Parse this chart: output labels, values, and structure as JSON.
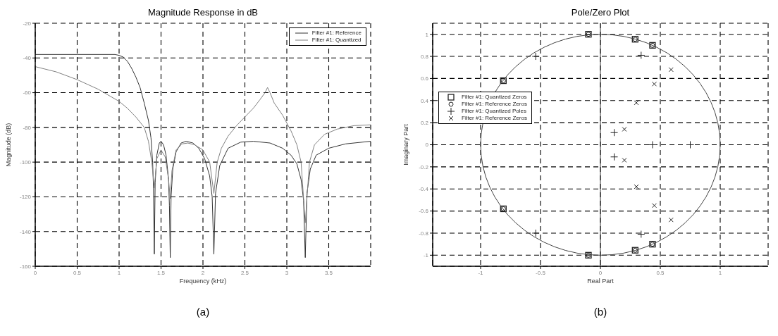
{
  "chart_data": [
    {
      "type": "line",
      "title": "Magnitude Response in dB",
      "xlabel": "Frequency (kHz)",
      "ylabel": "Magnitude (dB)",
      "xlim": [
        0,
        4
      ],
      "xticks": [
        0,
        0.5,
        1,
        1.5,
        2,
        2.5,
        3,
        3.5
      ],
      "ylim": [
        -160,
        -20
      ],
      "yticks": [
        -160,
        -140,
        -120,
        -100,
        -80,
        -60,
        -40,
        -20
      ],
      "grid": true,
      "legend": "top right",
      "line_style": "solid",
      "annotations": [
        "(a)"
      ],
      "series": [
        {
          "name": "Filter #1: Reference",
          "color": "#333333",
          "x": [
            0,
            0.5,
            0.95,
            1.0,
            1.05,
            1.1,
            1.15,
            1.2,
            1.25,
            1.3,
            1.35,
            1.38,
            1.4,
            1.41,
            1.42,
            1.43,
            1.45,
            1.48,
            1.5,
            1.53,
            1.56,
            1.59,
            1.6,
            1.61,
            1.62,
            1.64,
            1.68,
            1.74,
            1.8,
            1.88,
            1.95,
            2.02,
            2.08,
            2.11,
            2.13,
            2.15,
            2.2,
            2.3,
            2.45,
            2.6,
            2.8,
            2.95,
            3.05,
            3.12,
            3.17,
            3.2,
            3.22,
            3.24,
            3.28,
            3.35,
            3.5,
            3.7,
            4.0
          ],
          "values": [
            -38,
            -38,
            -38,
            -38.5,
            -39.5,
            -42,
            -46,
            -51,
            -57,
            -66,
            -76,
            -86,
            -100,
            -115,
            -153,
            -112,
            -96,
            -89,
            -88,
            -90,
            -96,
            -110,
            -125,
            -155,
            -120,
            -104,
            -94,
            -89,
            -88,
            -89,
            -92,
            -98,
            -108,
            -120,
            -153,
            -118,
            -102,
            -92,
            -88.5,
            -88,
            -89,
            -92,
            -96,
            -101,
            -110,
            -122,
            -155,
            -118,
            -104,
            -96,
            -92,
            -89.5,
            -88
          ]
        },
        {
          "name": "Filter #1: Quantized",
          "color": "#808080",
          "x": [
            0,
            0.25,
            0.5,
            0.75,
            1.0,
            1.1,
            1.2,
            1.3,
            1.35,
            1.39,
            1.42,
            1.45,
            1.5,
            1.55,
            1.59,
            1.61,
            1.63,
            1.68,
            1.75,
            1.82,
            1.9,
            2.0,
            2.08,
            2.13,
            2.17,
            2.22,
            2.3,
            2.4,
            2.5,
            2.6,
            2.68,
            2.74,
            2.77,
            2.8,
            2.85,
            2.95,
            3.05,
            3.12,
            3.17,
            3.22,
            3.27,
            3.33,
            3.45,
            3.6,
            3.8,
            4.0
          ],
          "values": [
            -45,
            -48,
            -52.5,
            -58,
            -65,
            -69,
            -74,
            -80,
            -88,
            -100,
            -115,
            -98,
            -93,
            -97,
            -110,
            -121,
            -105,
            -93,
            -89.5,
            -89,
            -90,
            -93,
            -100,
            -118,
            -100,
            -92,
            -85,
            -79,
            -74,
            -69,
            -64,
            -60,
            -57,
            -60,
            -66,
            -73,
            -82,
            -90,
            -100,
            -135,
            -100,
            -90,
            -84,
            -81,
            -79,
            -78.5
          ]
        }
      ]
    },
    {
      "type": "scatter",
      "title": "Pole/Zero Plot",
      "xlabel": "Real Part",
      "ylabel": "Imaginary Part",
      "xlim": [
        -1.4,
        1.4
      ],
      "xticks": [
        -1,
        -0.5,
        0,
        0.5,
        1
      ],
      "ylim": [
        -1.1,
        1.1
      ],
      "yticks": [
        -1,
        -0.8,
        -0.6,
        -0.4,
        -0.2,
        0,
        0.2,
        0.4,
        0.6,
        0.8,
        1
      ],
      "grid": true,
      "legend": "left",
      "annotations": [
        "(b)"
      ],
      "ref_lines": [
        {
          "axis": "x",
          "value": 0,
          "color": "#333333",
          "line_style": "solid"
        }
      ],
      "series": [
        {
          "name": "Filter #1: Quantized Zeros",
          "color": "#222222",
          "marker": "square",
          "x": [
            -0.1,
            0.29,
            0.435,
            -0.81,
            -0.81,
            -0.1,
            0.29,
            0.435
          ],
          "values": [
            1,
            0.955,
            0.9,
            0.58,
            -0.58,
            -1,
            -0.955,
            -0.9
          ]
        },
        {
          "name": "Filter #1: Reference Zeros",
          "color": "#222222",
          "marker": "circle",
          "x": [
            -0.1,
            0.29,
            0.435,
            -0.81,
            -0.81,
            -0.1,
            0.29,
            0.435
          ],
          "values": [
            1,
            0.955,
            0.9,
            0.58,
            -0.58,
            -1,
            -0.955,
            -0.9
          ]
        },
        {
          "name": "Filter #1: Quantized Poles",
          "color": "#222222",
          "marker": "plus",
          "x": [
            -0.54,
            0.34,
            0.115,
            0.435,
            0.75,
            0.115,
            0.34,
            -0.54
          ],
          "values": [
            0.8,
            0.81,
            0.11,
            0,
            0,
            -0.11,
            -0.81,
            -0.8
          ]
        },
        {
          "name": "Filter #1: Reference Zeros",
          "color": "#222222",
          "marker": "cross",
          "x": [
            0.59,
            0.45,
            0.3,
            0.2,
            0.2,
            0.3,
            0.45,
            0.59
          ],
          "values": [
            0.68,
            0.55,
            0.38,
            0.14,
            -0.14,
            -0.38,
            -0.55,
            -0.68
          ]
        }
      ]
    }
  ]
}
